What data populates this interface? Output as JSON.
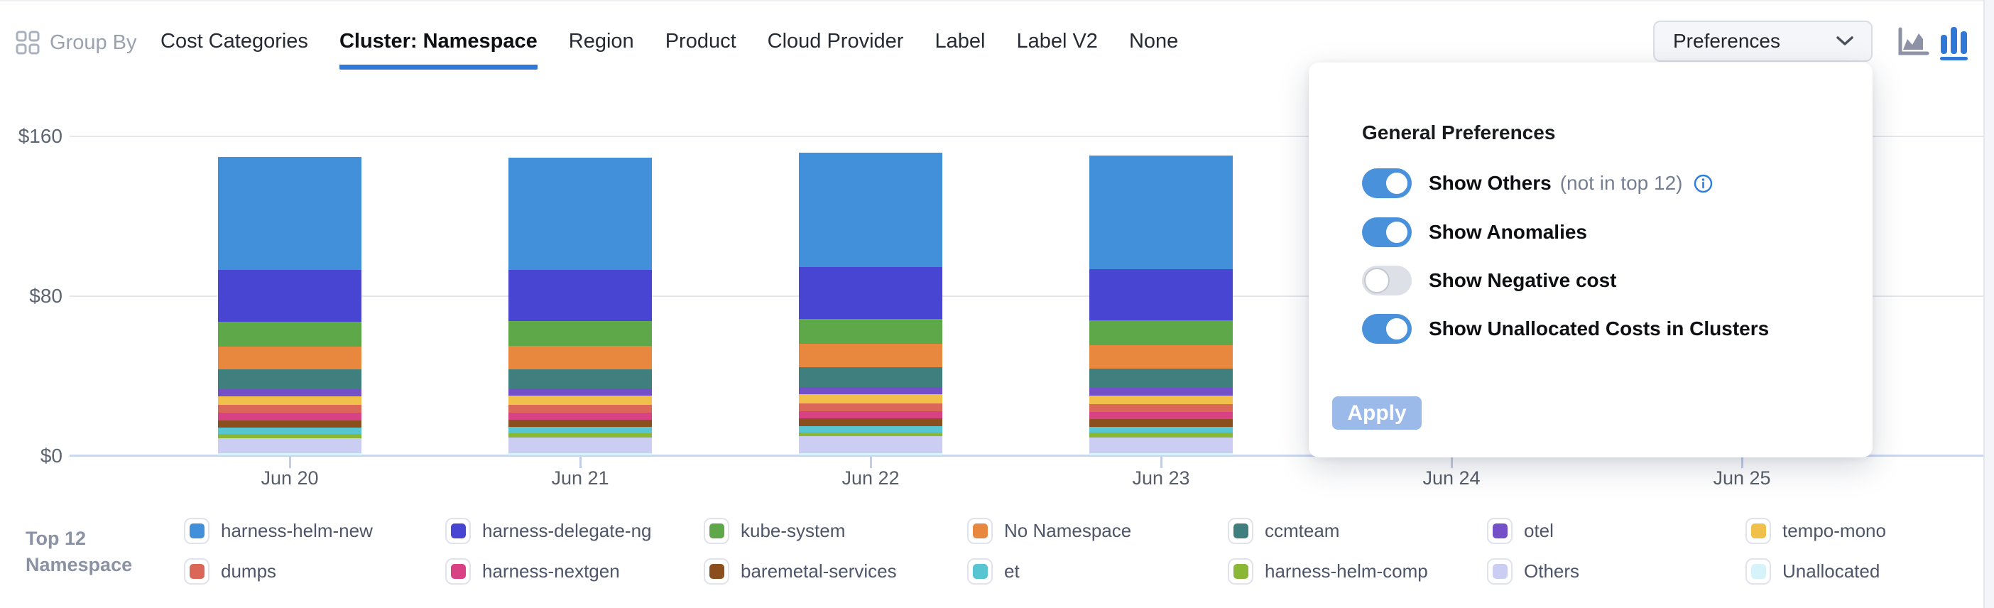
{
  "header": {
    "group_by_label": "Group By",
    "tabs": [
      {
        "label": "Cost Categories",
        "active": false
      },
      {
        "label": "Cluster: Namespace",
        "active": true
      },
      {
        "label": "Region",
        "active": false
      },
      {
        "label": "Product",
        "active": false
      },
      {
        "label": "Cloud Provider",
        "active": false
      },
      {
        "label": "Label",
        "active": false
      },
      {
        "label": "Label V2",
        "active": false
      },
      {
        "label": "None",
        "active": false
      }
    ],
    "preferences_label": "Preferences",
    "icons": {
      "group_by": "grid-icon",
      "preferences_chevron": "chevron-down-icon",
      "chart_type_area": "area-chart-icon",
      "chart_type_bar": "bar-chart-icon",
      "active_chart_type": "bar"
    }
  },
  "preferences_popup": {
    "title": "General Preferences",
    "toggles": [
      {
        "label": "Show Others",
        "hint": "(not in top 12)",
        "info_icon": true,
        "on": true
      },
      {
        "label": "Show Anomalies",
        "hint": "",
        "info_icon": false,
        "on": true
      },
      {
        "label": "Show Negative cost",
        "hint": "",
        "info_icon": false,
        "on": false
      },
      {
        "label": "Show Unallocated Costs in Clusters",
        "hint": "",
        "info_icon": false,
        "on": true
      }
    ],
    "apply_label": "Apply"
  },
  "legend": {
    "title_line1": "Top 12",
    "title_line2": "Namespace",
    "items": [
      {
        "label": "harness-helm-new",
        "color": "#4290d9"
      },
      {
        "label": "harness-delegate-ng",
        "color": "#4745d2"
      },
      {
        "label": "kube-system",
        "color": "#5ea849"
      },
      {
        "label": "No Namespace",
        "color": "#e8883e"
      },
      {
        "label": "ccmteam",
        "color": "#3f7f7e"
      },
      {
        "label": "otel",
        "color": "#7450c8"
      },
      {
        "label": "tempo-mono",
        "color": "#f0c04a"
      },
      {
        "label": "dumps",
        "color": "#da6758"
      },
      {
        "label": "harness-nextgen",
        "color": "#d94185"
      },
      {
        "label": "baremetal-services",
        "color": "#8b4f1d"
      },
      {
        "label": "et",
        "color": "#57c6d2"
      },
      {
        "label": "harness-helm-comp",
        "color": "#8ab836"
      },
      {
        "label": "Others",
        "color": "#cccdf2"
      },
      {
        "label": "Unallocated",
        "color": "#d6f3fa"
      }
    ]
  },
  "chart_data": {
    "type": "bar",
    "stacked": true,
    "title": "",
    "xlabel": "",
    "ylabel": "",
    "categories": [
      "Jun 20",
      "Jun 21",
      "Jun 22",
      "Jun 23",
      "Jun 24",
      "Jun 25"
    ],
    "visible_bar_count": 4,
    "ylim": [
      0,
      160
    ],
    "y_tick_labels": [
      "$0",
      "$80",
      "$160"
    ],
    "grid": "horizontal",
    "legend_position": "bottom",
    "series": [
      {
        "name": "harness-helm-new",
        "values": [
          56.5,
          56.2,
          57.2,
          56.8
        ]
      },
      {
        "name": "harness-delegate-ng",
        "values": [
          25.7,
          25.6,
          25.9,
          25.7
        ]
      },
      {
        "name": "kube-system",
        "values": [
          12.5,
          12.4,
          12.6,
          12.5
        ]
      },
      {
        "name": "No Namespace",
        "values": [
          11.5,
          11.5,
          11.6,
          11.5
        ]
      },
      {
        "name": "ccmteam",
        "values": [
          9.8,
          9.8,
          9.9,
          9.8
        ]
      },
      {
        "name": "otel",
        "values": [
          3.7,
          3.7,
          3.7,
          3.7
        ]
      },
      {
        "name": "tempo-mono",
        "values": [
          4.4,
          4.4,
          4.5,
          4.4
        ]
      },
      {
        "name": "dumps",
        "values": [
          3.8,
          3.8,
          3.8,
          3.8
        ]
      },
      {
        "name": "harness-nextgen",
        "values": [
          3.7,
          3.7,
          3.8,
          3.7
        ]
      },
      {
        "name": "baremetal-services",
        "values": [
          3.7,
          3.7,
          3.7,
          3.7
        ]
      },
      {
        "name": "et",
        "values": [
          3.2,
          3.2,
          3.2,
          3.0
        ]
      },
      {
        "name": "harness-helm-comp",
        "values": [
          2.0,
          2.0,
          2.0,
          2.4
        ]
      },
      {
        "name": "Others",
        "values": [
          7.7,
          7.9,
          8.5,
          8.0
        ]
      },
      {
        "name": "Unallocated",
        "values": [
          1.0,
          1.0,
          1.0,
          1.0
        ]
      }
    ]
  },
  "colors": {
    "accent_blue": "#2f78d6",
    "toggle_on": "#4a91db",
    "apply_disabled": "#9bbae9",
    "gridline": "#e5e7eb",
    "axis_line": "#c9d6ee"
  }
}
